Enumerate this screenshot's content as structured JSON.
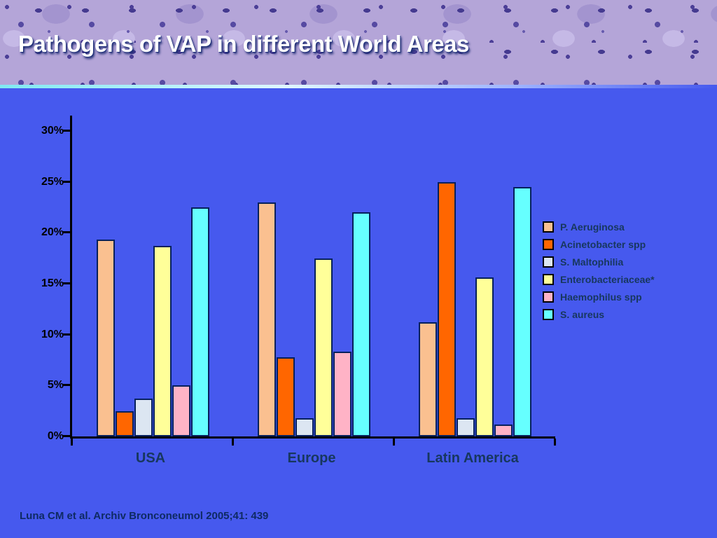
{
  "slide": {
    "title": "Pathogens of VAP in different World Areas",
    "background_color": "#4659EE"
  },
  "footer": {
    "citation": "Luna CM et al. Archiv Bronconeumol 2005;41: 439"
  },
  "chart_data": {
    "type": "bar",
    "title": "Pathogens of VAP in different World Areas",
    "categories": [
      "USA",
      "Europe",
      "Latin America"
    ],
    "series": [
      {
        "name": "P. Aeruginosa",
        "color": "#FAC090",
        "values": [
          19.3,
          23.0,
          11.2
        ]
      },
      {
        "name": "Acinetobacter spp",
        "color": "#FF6600",
        "values": [
          2.5,
          7.8,
          25.0
        ]
      },
      {
        "name": "S. Maltophilia",
        "color": "#DCE6F2",
        "values": [
          3.7,
          1.8,
          1.8
        ]
      },
      {
        "name": "Enterobacteriaceae*",
        "color": "#FFFF99",
        "values": [
          18.7,
          17.5,
          15.6
        ]
      },
      {
        "name": "Haemophilus spp",
        "color": "#FFB3C6",
        "values": [
          5.0,
          8.3,
          1.2
        ]
      },
      {
        "name": "S. aureus",
        "color": "#66FFFF",
        "values": [
          22.5,
          22.0,
          24.5
        ]
      }
    ],
    "ylim": [
      0,
      30
    ],
    "ytick_values": [
      0,
      5,
      10,
      15,
      20,
      25,
      30
    ],
    "ytick_labels": [
      "0%",
      "5%",
      "10%",
      "15%",
      "20%",
      "25%",
      "30%"
    ],
    "xlabel": "",
    "ylabel": "",
    "grid": false,
    "legend_position": "right"
  }
}
